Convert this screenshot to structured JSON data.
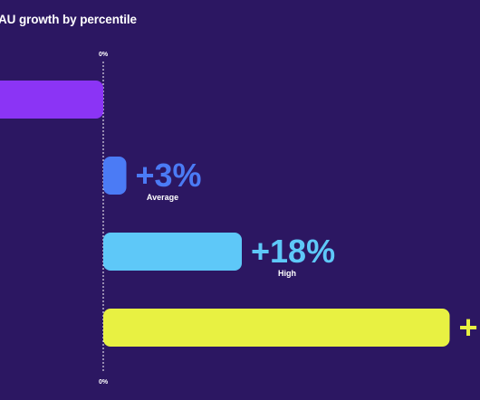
{
  "chart_data": {
    "type": "bar",
    "orientation": "horizontal",
    "title": "AU growth by percentile",
    "categories": [
      "",
      "Average",
      "High",
      ""
    ],
    "values": [
      -22,
      3,
      18,
      45
    ],
    "value_labels": [
      "",
      "+3%",
      "+18%",
      "+"
    ],
    "colors": [
      "#8b34f5",
      "#4b7bf5",
      "#5ec8f8",
      "#e8f142"
    ],
    "axis_label_top": "0%",
    "axis_label_bottom": "0%",
    "reference_line_at": 0,
    "grid": false
  }
}
